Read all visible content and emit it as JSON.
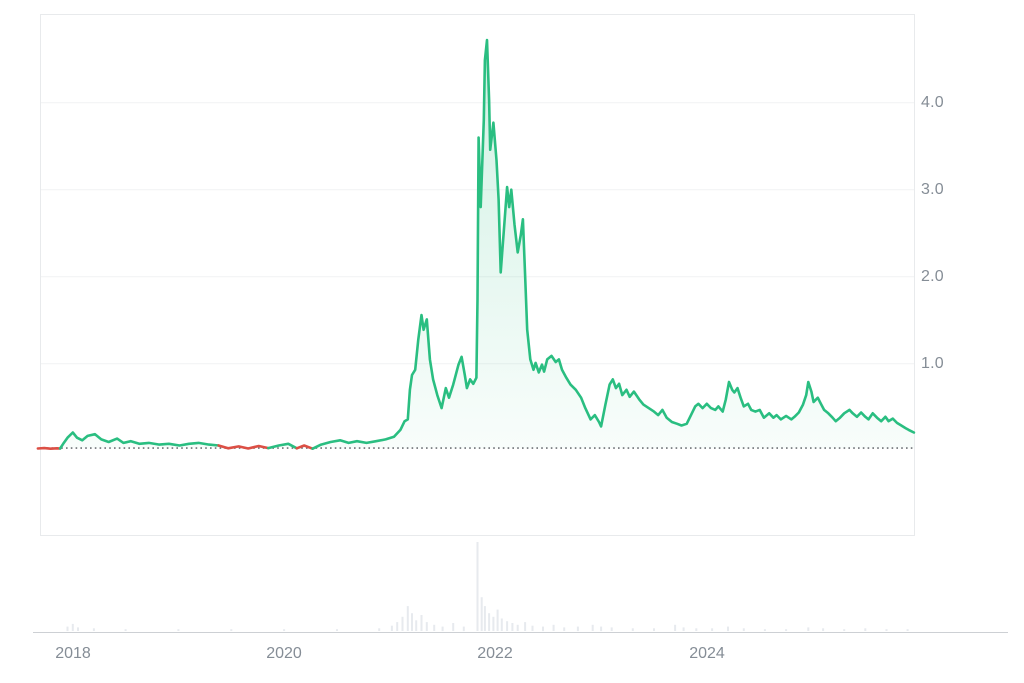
{
  "chart_data": {
    "type": "area",
    "title": "",
    "xlabel": "",
    "ylabel": "",
    "legend": "none",
    "grid": "horizontal-only",
    "xlim": [
      2017.69,
      2025.97
    ],
    "ylim": [
      -0.98,
      5.02
    ],
    "baseline_price": 0.03,
    "y_axis": {
      "side": "right",
      "ticks": [
        {
          "label": "4.0",
          "value": 4.0
        },
        {
          "label": "3.0",
          "value": 3.0
        },
        {
          "label": "2.0",
          "value": 2.0
        },
        {
          "label": "1.0",
          "value": 1.0
        }
      ]
    },
    "x_axis": {
      "side": "bottom",
      "ticks": [
        {
          "label": "2018",
          "value": 2018
        },
        {
          "label": "2020",
          "value": 2020
        },
        {
          "label": "2022",
          "value": 2022
        },
        {
          "label": "2024",
          "value": 2024
        }
      ]
    },
    "colors": {
      "line_up": "#2abe81",
      "line_down": "#dc4f45",
      "fill_rgb": "42,190,129",
      "grid": "#f1f2f4",
      "plot_border": "#e8eaec",
      "axis_label": "#858d96",
      "baseline_dots": "#6d7176",
      "volume_bar": "#e7eaee",
      "axis_line": "#cdd0d4",
      "background": "#ffffff"
    },
    "series": [
      {
        "name": "price",
        "points": [
          [
            2017.67,
            0.026
          ],
          [
            2017.73,
            0.03
          ],
          [
            2017.79,
            0.024
          ],
          [
            2017.85,
            0.028
          ],
          [
            2017.88,
            0.026
          ],
          [
            2017.91,
            0.08
          ],
          [
            2017.95,
            0.15
          ],
          [
            2018.0,
            0.21
          ],
          [
            2018.04,
            0.15
          ],
          [
            2018.09,
            0.12
          ],
          [
            2018.14,
            0.17
          ],
          [
            2018.21,
            0.19
          ],
          [
            2018.27,
            0.13
          ],
          [
            2018.34,
            0.1
          ],
          [
            2018.42,
            0.14
          ],
          [
            2018.48,
            0.09
          ],
          [
            2018.55,
            0.11
          ],
          [
            2018.63,
            0.08
          ],
          [
            2018.72,
            0.09
          ],
          [
            2018.82,
            0.07
          ],
          [
            2018.91,
            0.08
          ],
          [
            2019.01,
            0.06
          ],
          [
            2019.1,
            0.08
          ],
          [
            2019.19,
            0.09
          ],
          [
            2019.29,
            0.07
          ],
          [
            2019.38,
            0.06
          ],
          [
            2019.47,
            0.028
          ],
          [
            2019.57,
            0.05
          ],
          [
            2019.66,
            0.026
          ],
          [
            2019.76,
            0.055
          ],
          [
            2019.85,
            0.03
          ],
          [
            2019.95,
            0.06
          ],
          [
            2020.04,
            0.08
          ],
          [
            2020.12,
            0.028
          ],
          [
            2020.19,
            0.06
          ],
          [
            2020.27,
            0.024
          ],
          [
            2020.35,
            0.07
          ],
          [
            2020.44,
            0.1
          ],
          [
            2020.53,
            0.12
          ],
          [
            2020.61,
            0.09
          ],
          [
            2020.69,
            0.11
          ],
          [
            2020.78,
            0.09
          ],
          [
            2020.87,
            0.11
          ],
          [
            2020.96,
            0.13
          ],
          [
            2021.04,
            0.16
          ],
          [
            2021.1,
            0.24
          ],
          [
            2021.14,
            0.34
          ],
          [
            2021.17,
            0.36
          ],
          [
            2021.19,
            0.7
          ],
          [
            2021.21,
            0.87
          ],
          [
            2021.24,
            0.93
          ],
          [
            2021.27,
            1.28
          ],
          [
            2021.3,
            1.56
          ],
          [
            2021.32,
            1.39
          ],
          [
            2021.35,
            1.51
          ],
          [
            2021.38,
            1.05
          ],
          [
            2021.41,
            0.82
          ],
          [
            2021.45,
            0.64
          ],
          [
            2021.49,
            0.49
          ],
          [
            2021.53,
            0.72
          ],
          [
            2021.56,
            0.61
          ],
          [
            2021.6,
            0.76
          ],
          [
            2021.65,
            0.99
          ],
          [
            2021.68,
            1.08
          ],
          [
            2021.71,
            0.87
          ],
          [
            2021.73,
            0.72
          ],
          [
            2021.76,
            0.82
          ],
          [
            2021.79,
            0.77
          ],
          [
            2021.82,
            0.84
          ],
          [
            2021.83,
            1.74
          ],
          [
            2021.84,
            3.6
          ],
          [
            2021.86,
            2.8
          ],
          [
            2021.89,
            3.8
          ],
          [
            2021.9,
            4.49
          ],
          [
            2021.92,
            4.72
          ],
          [
            2021.94,
            4.03
          ],
          [
            2021.95,
            3.46
          ],
          [
            2021.98,
            3.77
          ],
          [
            2022.01,
            3.34
          ],
          [
            2022.03,
            2.89
          ],
          [
            2022.05,
            2.05
          ],
          [
            2022.08,
            2.54
          ],
          [
            2022.11,
            3.03
          ],
          [
            2022.13,
            2.8
          ],
          [
            2022.15,
            3.0
          ],
          [
            2022.18,
            2.6
          ],
          [
            2022.21,
            2.28
          ],
          [
            2022.24,
            2.48
          ],
          [
            2022.26,
            2.66
          ],
          [
            2022.28,
            2.02
          ],
          [
            2022.3,
            1.39
          ],
          [
            2022.33,
            1.05
          ],
          [
            2022.36,
            0.93
          ],
          [
            2022.38,
            1.01
          ],
          [
            2022.41,
            0.9
          ],
          [
            2022.44,
            0.99
          ],
          [
            2022.46,
            0.91
          ],
          [
            2022.49,
            1.05
          ],
          [
            2022.53,
            1.09
          ],
          [
            2022.57,
            1.02
          ],
          [
            2022.6,
            1.05
          ],
          [
            2022.63,
            0.93
          ],
          [
            2022.67,
            0.84
          ],
          [
            2022.71,
            0.76
          ],
          [
            2022.76,
            0.7
          ],
          [
            2022.81,
            0.61
          ],
          [
            2022.85,
            0.49
          ],
          [
            2022.9,
            0.36
          ],
          [
            2022.94,
            0.41
          ],
          [
            2022.98,
            0.33
          ],
          [
            2023.0,
            0.28
          ],
          [
            2023.04,
            0.53
          ],
          [
            2023.08,
            0.76
          ],
          [
            2023.11,
            0.82
          ],
          [
            2023.14,
            0.72
          ],
          [
            2023.17,
            0.77
          ],
          [
            2023.2,
            0.64
          ],
          [
            2023.24,
            0.7
          ],
          [
            2023.27,
            0.62
          ],
          [
            2023.31,
            0.68
          ],
          [
            2023.36,
            0.59
          ],
          [
            2023.4,
            0.53
          ],
          [
            2023.45,
            0.49
          ],
          [
            2023.5,
            0.45
          ],
          [
            2023.54,
            0.41
          ],
          [
            2023.58,
            0.47
          ],
          [
            2023.62,
            0.38
          ],
          [
            2023.67,
            0.33
          ],
          [
            2023.72,
            0.31
          ],
          [
            2023.76,
            0.29
          ],
          [
            2023.81,
            0.31
          ],
          [
            2023.85,
            0.41
          ],
          [
            2023.89,
            0.51
          ],
          [
            2023.92,
            0.54
          ],
          [
            2023.96,
            0.49
          ],
          [
            2024.0,
            0.54
          ],
          [
            2024.04,
            0.49
          ],
          [
            2024.08,
            0.47
          ],
          [
            2024.11,
            0.51
          ],
          [
            2024.15,
            0.45
          ],
          [
            2024.18,
            0.59
          ],
          [
            2024.21,
            0.79
          ],
          [
            2024.24,
            0.7
          ],
          [
            2024.26,
            0.67
          ],
          [
            2024.29,
            0.72
          ],
          [
            2024.32,
            0.61
          ],
          [
            2024.35,
            0.51
          ],
          [
            2024.39,
            0.54
          ],
          [
            2024.42,
            0.47
          ],
          [
            2024.46,
            0.45
          ],
          [
            2024.5,
            0.47
          ],
          [
            2024.54,
            0.38
          ],
          [
            2024.59,
            0.43
          ],
          [
            2024.63,
            0.38
          ],
          [
            2024.66,
            0.41
          ],
          [
            2024.7,
            0.36
          ],
          [
            2024.75,
            0.4
          ],
          [
            2024.8,
            0.36
          ],
          [
            2024.83,
            0.39
          ],
          [
            2024.87,
            0.44
          ],
          [
            2024.91,
            0.53
          ],
          [
            2024.94,
            0.64
          ],
          [
            2024.96,
            0.79
          ],
          [
            2024.99,
            0.68
          ],
          [
            2025.01,
            0.56
          ],
          [
            2025.05,
            0.61
          ],
          [
            2025.08,
            0.54
          ],
          [
            2025.11,
            0.47
          ],
          [
            2025.15,
            0.43
          ],
          [
            2025.19,
            0.38
          ],
          [
            2025.22,
            0.34
          ],
          [
            2025.26,
            0.38
          ],
          [
            2025.3,
            0.43
          ],
          [
            2025.35,
            0.47
          ],
          [
            2025.38,
            0.43
          ],
          [
            2025.42,
            0.39
          ],
          [
            2025.46,
            0.44
          ],
          [
            2025.5,
            0.39
          ],
          [
            2025.53,
            0.36
          ],
          [
            2025.57,
            0.43
          ],
          [
            2025.61,
            0.38
          ],
          [
            2025.65,
            0.34
          ],
          [
            2025.69,
            0.39
          ],
          [
            2025.72,
            0.34
          ],
          [
            2025.76,
            0.37
          ],
          [
            2025.8,
            0.32
          ],
          [
            2025.84,
            0.29
          ],
          [
            2025.88,
            0.26
          ],
          [
            2025.91,
            0.24
          ],
          [
            2025.96,
            0.21
          ]
        ]
      }
    ],
    "volume_bars": [
      [
        2017.95,
        0.05
      ],
      [
        2018.0,
        0.08
      ],
      [
        2018.05,
        0.04
      ],
      [
        2018.2,
        0.03
      ],
      [
        2018.5,
        0.02
      ],
      [
        2019.0,
        0.02
      ],
      [
        2019.5,
        0.02
      ],
      [
        2020.0,
        0.02
      ],
      [
        2020.5,
        0.02
      ],
      [
        2020.9,
        0.03
      ],
      [
        2021.02,
        0.06
      ],
      [
        2021.07,
        0.1
      ],
      [
        2021.12,
        0.16
      ],
      [
        2021.17,
        0.28
      ],
      [
        2021.21,
        0.2
      ],
      [
        2021.25,
        0.12
      ],
      [
        2021.3,
        0.18
      ],
      [
        2021.35,
        0.1
      ],
      [
        2021.42,
        0.07
      ],
      [
        2021.5,
        0.05
      ],
      [
        2021.6,
        0.09
      ],
      [
        2021.7,
        0.05
      ],
      [
        2021.83,
        1.0
      ],
      [
        2021.87,
        0.38
      ],
      [
        2021.9,
        0.28
      ],
      [
        2021.94,
        0.2
      ],
      [
        2021.98,
        0.16
      ],
      [
        2022.02,
        0.24
      ],
      [
        2022.06,
        0.14
      ],
      [
        2022.11,
        0.11
      ],
      [
        2022.16,
        0.09
      ],
      [
        2022.21,
        0.07
      ],
      [
        2022.28,
        0.1
      ],
      [
        2022.35,
        0.06
      ],
      [
        2022.45,
        0.05
      ],
      [
        2022.55,
        0.07
      ],
      [
        2022.65,
        0.04
      ],
      [
        2022.78,
        0.05
      ],
      [
        2022.92,
        0.07
      ],
      [
        2023.0,
        0.05
      ],
      [
        2023.1,
        0.04
      ],
      [
        2023.3,
        0.03
      ],
      [
        2023.5,
        0.03
      ],
      [
        2023.7,
        0.07
      ],
      [
        2023.78,
        0.04
      ],
      [
        2023.9,
        0.03
      ],
      [
        2024.05,
        0.03
      ],
      [
        2024.2,
        0.05
      ],
      [
        2024.35,
        0.03
      ],
      [
        2024.55,
        0.02
      ],
      [
        2024.75,
        0.02
      ],
      [
        2024.96,
        0.04
      ],
      [
        2025.1,
        0.03
      ],
      [
        2025.3,
        0.02
      ],
      [
        2025.5,
        0.03
      ],
      [
        2025.7,
        0.02
      ],
      [
        2025.9,
        0.02
      ]
    ]
  }
}
